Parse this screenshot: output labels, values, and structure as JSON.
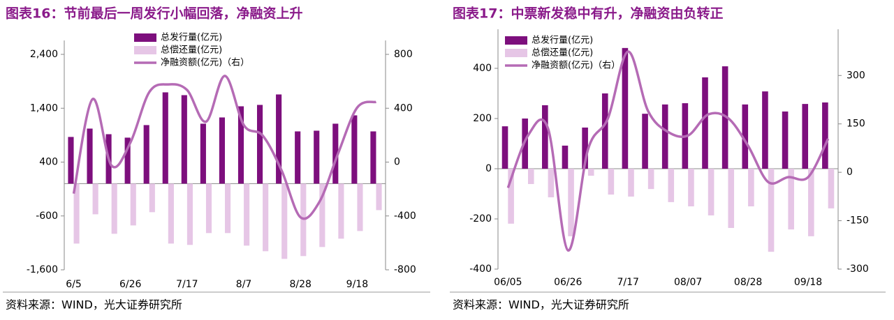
{
  "chart_data": [
    {
      "type": "bar-line",
      "title": "图表16：节前最后一周发行小幅回落，净融资上升",
      "source": "资料来源：WIND，光大证券研究所",
      "categories": [
        "6/5",
        null,
        null,
        "6/26",
        null,
        null,
        "7/17",
        null,
        null,
        "8/7",
        null,
        null,
        "8/28",
        null,
        null,
        "9/18",
        null
      ],
      "series": [
        {
          "name": "总发行量(亿元)",
          "color": "#7d0f7d",
          "values": [
            867,
            1022,
            918,
            854,
            1087,
            1695,
            1643,
            1113,
            1229,
            1436,
            1462,
            1656,
            970,
            983,
            1113,
            1268,
            970
          ]
        },
        {
          "name": "总偿还量(亿元)",
          "color": "#e6c6e6",
          "values": [
            -1113,
            -569,
            -931,
            -776,
            -530,
            -1113,
            -1138,
            -918,
            -918,
            -1151,
            -1255,
            -1397,
            -1345,
            -1177,
            -1022,
            -880,
            -492
          ]
        },
        {
          "name": "净融资额(亿元)（右）",
          "color": "#b56bb5",
          "axis": "y2",
          "values": [
            -234,
            468,
            -26,
            145,
            520,
            577,
            535,
            300,
            640,
            275,
            197,
            -62,
            -410,
            -296,
            68,
            405,
            447
          ]
        }
      ],
      "ylim": [
        -1600,
        2400
      ],
      "yticks": [
        {
          "value": -1600,
          "label": "-1,600"
        },
        -600,
        400,
        {
          "value": 1400,
          "label": "1,400"
        },
        {
          "value": 2400,
          "label": "2,400"
        }
      ],
      "y2lim": [
        -800,
        800
      ],
      "y2ticks": [
        -800,
        -400,
        0,
        400,
        800
      ],
      "legend": "upper center"
    },
    {
      "type": "bar-line",
      "title": "图表17：中票新发稳中有升，净融资由负转正",
      "source": "资料来源：WIND，光大证券研究所",
      "categories": [
        "06/05",
        null,
        null,
        "06/26",
        null,
        null,
        "7/17",
        null,
        null,
        "08/07",
        null,
        null,
        "08/28",
        null,
        null,
        "09/18",
        null
      ],
      "series": [
        {
          "name": "总发行量(亿元)",
          "color": "#7d0f7d",
          "values": [
            169,
            200,
            253,
            92,
            164,
            300,
            481,
            219,
            256,
            261,
            364,
            408,
            256,
            308,
            228,
            258,
            264
          ]
        },
        {
          "name": "总偿还量(亿元)",
          "color": "#e6c6e6",
          "values": [
            -219,
            -61,
            -114,
            -269,
            -28,
            -103,
            -111,
            -81,
            -133,
            -150,
            -186,
            -236,
            -150,
            -331,
            -242,
            -269,
            -158
          ]
        },
        {
          "name": "净融资额(亿元)（右）",
          "color": "#b56bb5",
          "axis": "y2",
          "values": [
            -48,
            114,
            136,
            -242,
            71,
            168,
            374,
            190,
            125,
            114,
            179,
            168,
            82,
            -30,
            -15,
            -15,
            104
          ]
        }
      ],
      "ylim": [
        -400,
        500
      ],
      "yticks": [
        -400,
        -200,
        0,
        200,
        400
      ],
      "y2lim": [
        -300,
        400
      ],
      "y2ticks": [
        -300,
        -150,
        0,
        150,
        300
      ],
      "legend": "upper left"
    }
  ]
}
